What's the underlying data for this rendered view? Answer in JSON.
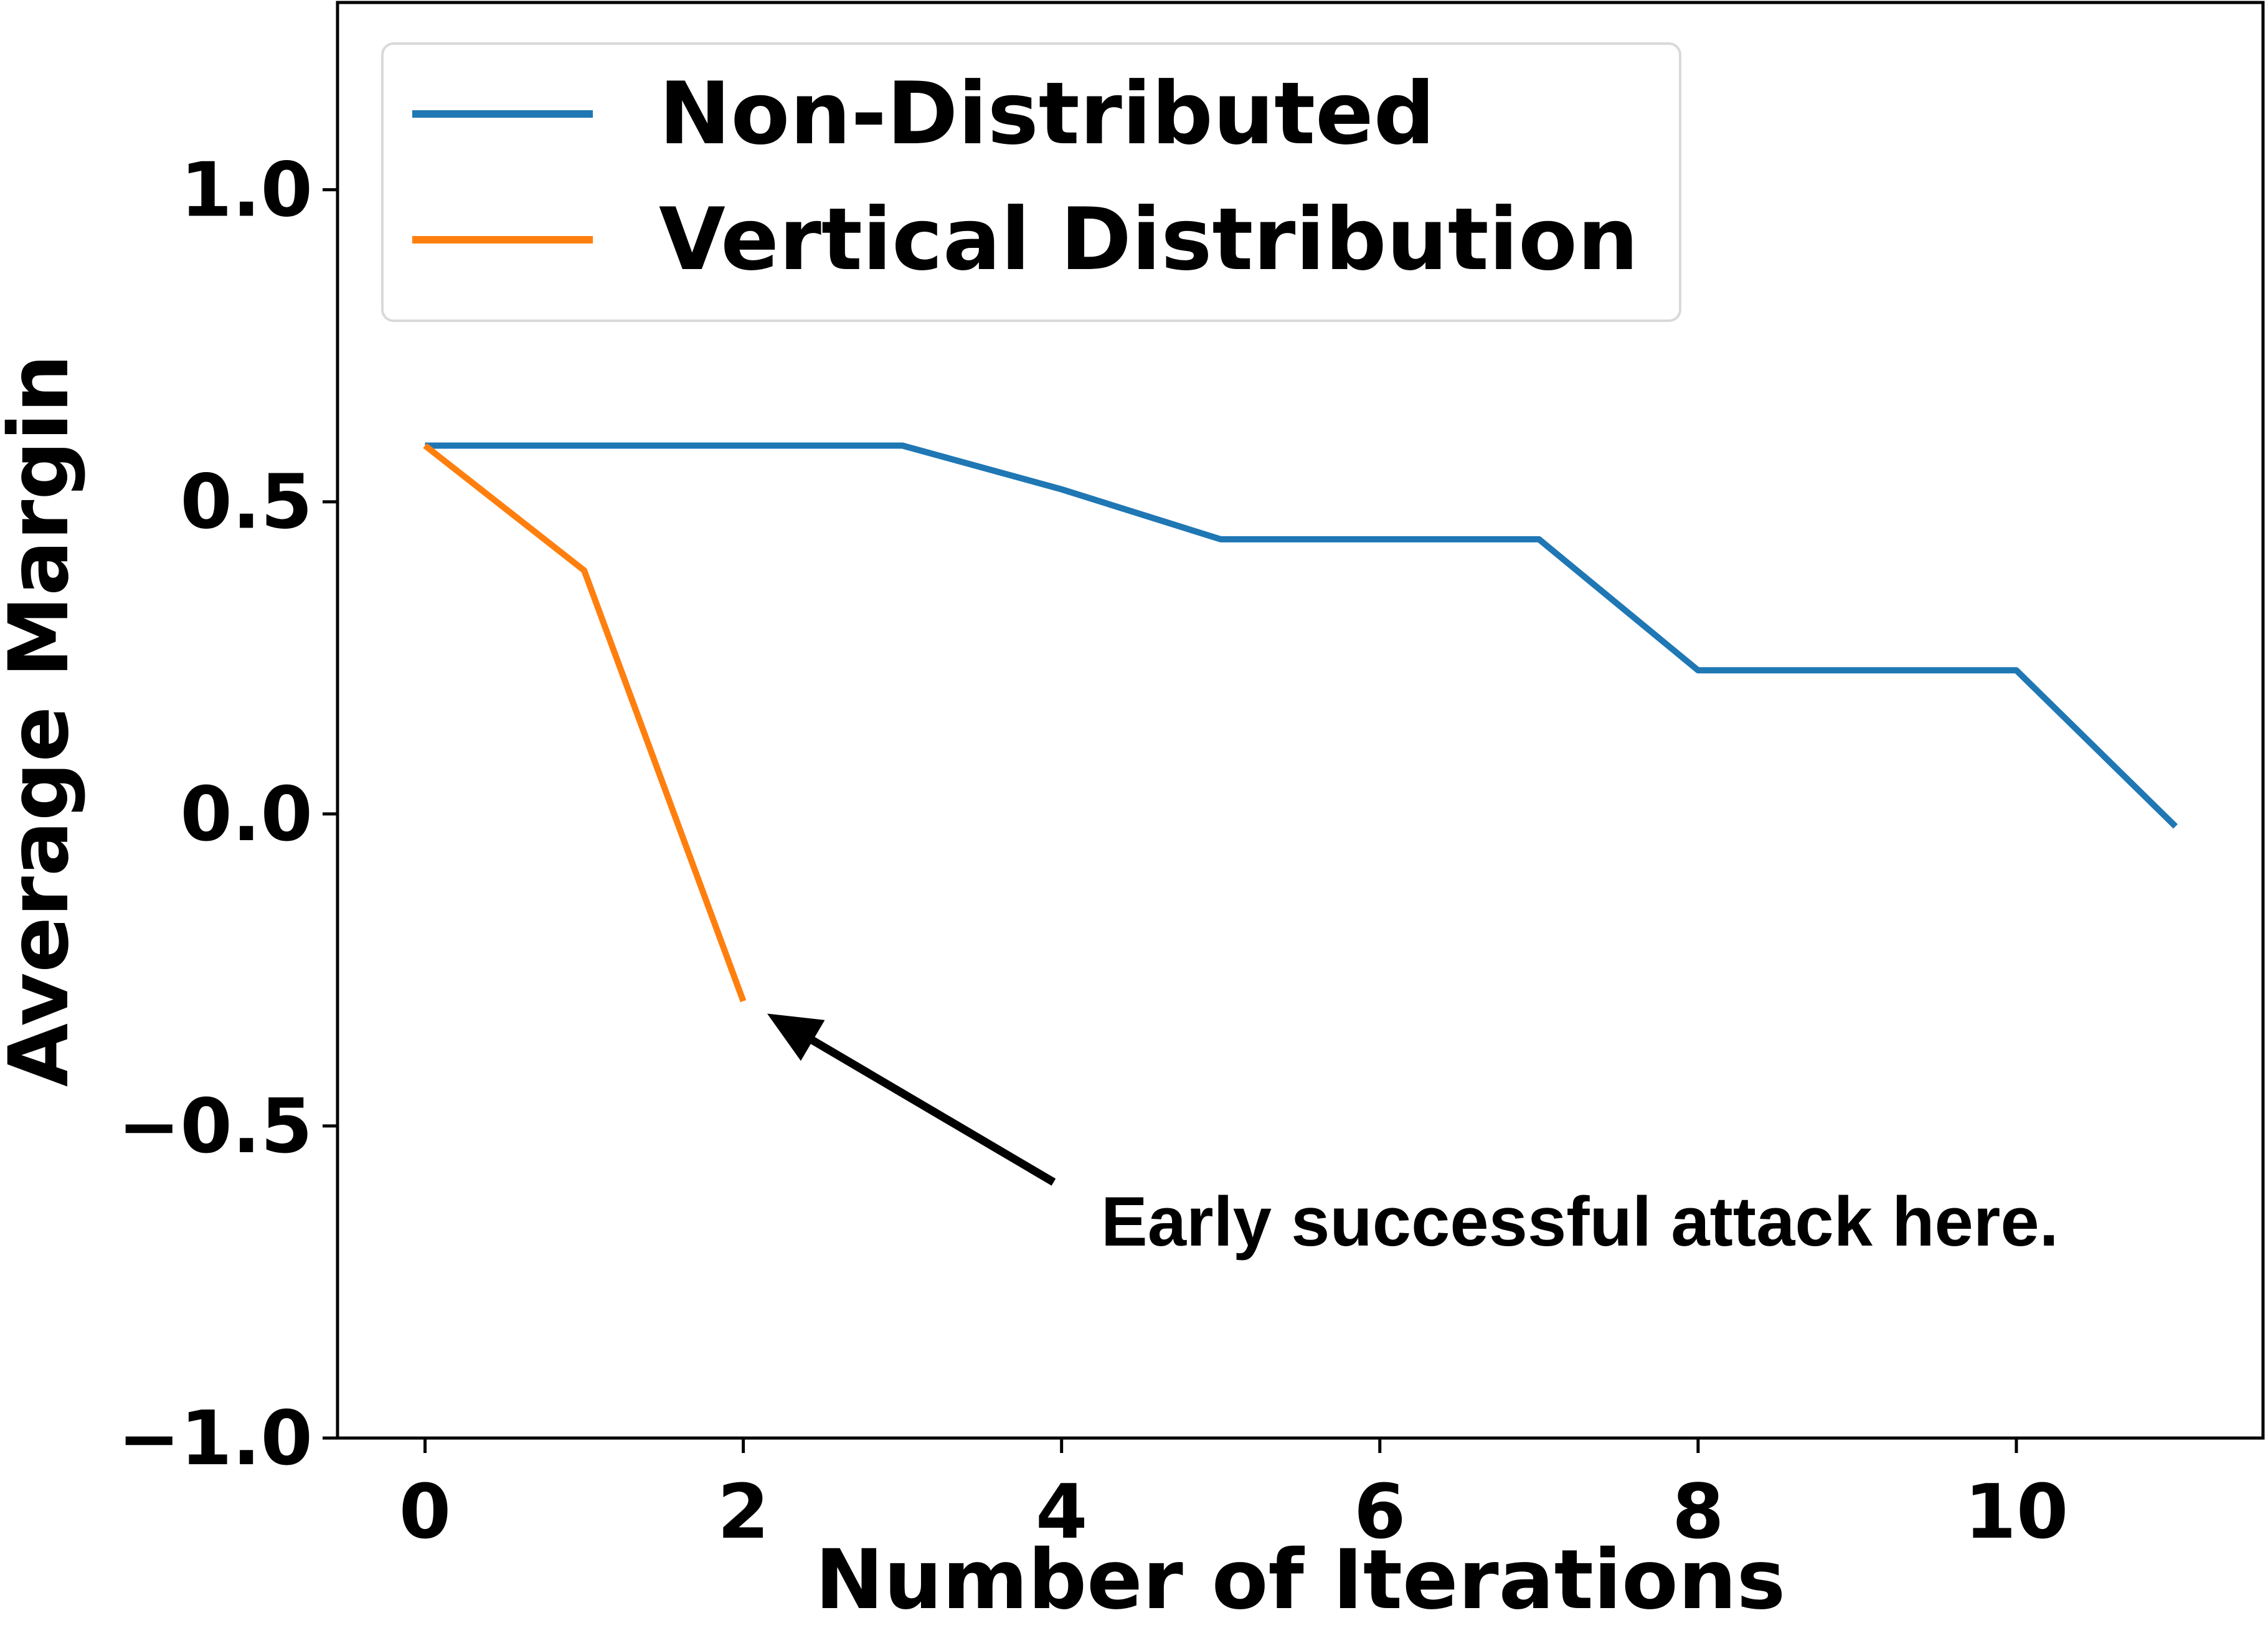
{
  "chart_data": {
    "type": "line",
    "xlabel": "Number of Iterations",
    "ylabel": "Average Margin",
    "xlim": [
      -0.55,
      11.55
    ],
    "ylim": [
      -1.0,
      1.3
    ],
    "xticks": [
      0,
      2,
      4,
      6,
      8,
      10
    ],
    "yticks": [
      -1.0,
      -0.5,
      0.0,
      0.5,
      1.0
    ],
    "xtick_labels": [
      "0",
      "2",
      "4",
      "6",
      "8",
      "10"
    ],
    "ytick_labels": [
      "−1.0",
      "−0.5",
      "0.0",
      "0.5",
      "1.0"
    ],
    "grid": false,
    "legend_position": "top-left",
    "series": [
      {
        "name": "Non-Distributed",
        "color": "#1f77b4",
        "x": [
          0,
          1,
          2,
          3,
          4,
          5,
          6,
          7,
          8,
          9,
          10,
          11
        ],
        "y": [
          0.59,
          0.59,
          0.59,
          0.59,
          0.52,
          0.44,
          0.44,
          0.44,
          0.23,
          0.23,
          0.23,
          -0.02
        ]
      },
      {
        "name": "Vertical Distribution",
        "color": "#ff7f0e",
        "x": [
          0,
          1,
          2
        ],
        "y": [
          0.59,
          0.39,
          -0.3
        ]
      }
    ],
    "annotation": {
      "text": "Early successful attack here.",
      "arrow_to": [
        2.15,
        -0.32
      ],
      "arrow_from": [
        3.95,
        -0.59
      ]
    }
  }
}
